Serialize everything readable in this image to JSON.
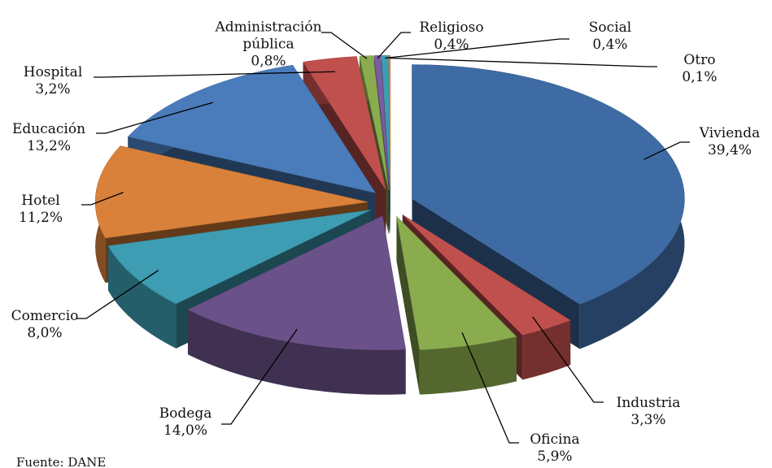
{
  "chart_data": {
    "type": "pie",
    "categories": [
      "Vivienda",
      "Industria",
      "Oficina",
      "Bodega",
      "Comercio",
      "Hotel",
      "Educación",
      "Hospital",
      "Administración pública",
      "Religioso",
      "Social",
      "Otro"
    ],
    "values": [
      39.4,
      3.3,
      5.9,
      14.0,
      8.0,
      11.2,
      13.2,
      3.2,
      0.8,
      0.4,
      0.4,
      0.1
    ],
    "value_labels": [
      "39,4%",
      "3,3%",
      "5,9%",
      "14,0%",
      "8,0%",
      "11,2%",
      "13,2%",
      "3,2%",
      "0,8%",
      "0,4%",
      "0,4%",
      "0,1%"
    ],
    "colors": [
      "#3e6ba3",
      "#c0504d",
      "#8aac4e",
      "#6b5189",
      "#3e9db3",
      "#d9813a",
      "#4a7cbb",
      "#c0504d",
      "#8aac4e",
      "#7a5ca0",
      "#3e9db3",
      "#e08a3e"
    ],
    "source": "Fuente: DANE"
  }
}
